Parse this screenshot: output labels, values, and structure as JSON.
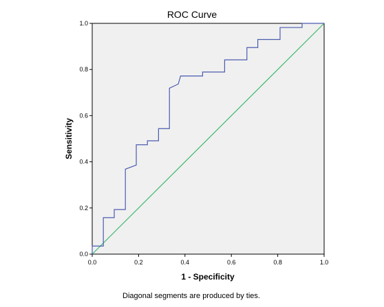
{
  "chart_data": {
    "type": "line",
    "title": "ROC Curve",
    "xlabel": "1 - Specificity",
    "ylabel": "Sensitivity",
    "footnote": "Diagonal segments are produced by ties.",
    "xlim": [
      0,
      1
    ],
    "ylim": [
      0,
      1
    ],
    "x_ticks": [
      "0.0",
      "0.2",
      "0.4",
      "0.6",
      "0.8",
      "1.0"
    ],
    "y_ticks": [
      "0.0",
      "0.2",
      "0.4",
      "0.6",
      "0.8",
      "1.0"
    ],
    "grid": false,
    "plot_background": "#f0f0f0",
    "series": [
      {
        "color": "#4a5bb0",
        "points": [
          [
            0.0,
            0.0
          ],
          [
            0.0,
            0.035
          ],
          [
            0.048,
            0.035
          ],
          [
            0.048,
            0.158
          ],
          [
            0.095,
            0.158
          ],
          [
            0.095,
            0.193
          ],
          [
            0.143,
            0.193
          ],
          [
            0.143,
            0.368
          ],
          [
            0.19,
            0.386
          ],
          [
            0.19,
            0.474
          ],
          [
            0.238,
            0.474
          ],
          [
            0.238,
            0.491
          ],
          [
            0.286,
            0.491
          ],
          [
            0.286,
            0.544
          ],
          [
            0.333,
            0.544
          ],
          [
            0.333,
            0.719
          ],
          [
            0.371,
            0.737
          ],
          [
            0.381,
            0.772
          ],
          [
            0.476,
            0.772
          ],
          [
            0.476,
            0.789
          ],
          [
            0.571,
            0.789
          ],
          [
            0.571,
            0.842
          ],
          [
            0.667,
            0.842
          ],
          [
            0.667,
            0.895
          ],
          [
            0.714,
            0.895
          ],
          [
            0.714,
            0.93
          ],
          [
            0.81,
            0.93
          ],
          [
            0.81,
            0.982
          ],
          [
            0.905,
            0.982
          ],
          [
            0.905,
            1.0
          ],
          [
            1.0,
            1.0
          ]
        ]
      },
      {
        "color": "#3cb96c",
        "points": [
          [
            0.0,
            0.0
          ],
          [
            1.0,
            1.0
          ]
        ]
      }
    ]
  }
}
